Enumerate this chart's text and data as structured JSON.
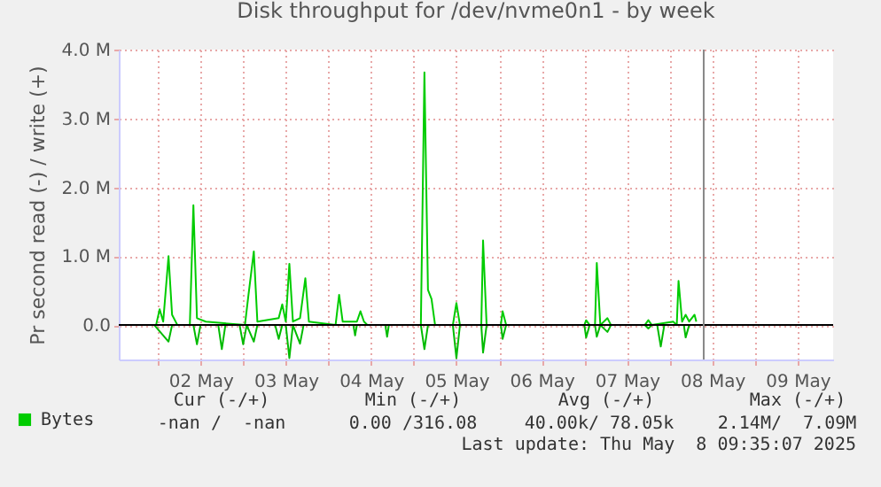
{
  "chart_data": {
    "type": "line",
    "title": "Disk throughput for /dev/nvme0n1 - by week",
    "ylabel": "Pr second read (-) / write (+)",
    "xlim": [
      "2025-05-01T13:00",
      "2025-05-09T22:00"
    ],
    "xticks": [
      {
        "value": "2025-05-02T00:00",
        "label": null
      },
      {
        "value": "2025-05-02T12:00",
        "label": "02 May"
      },
      {
        "value": "2025-05-03T00:00",
        "label": null
      },
      {
        "value": "2025-05-03T12:00",
        "label": "03 May"
      },
      {
        "value": "2025-05-04T00:00",
        "label": null
      },
      {
        "value": "2025-05-04T12:00",
        "label": "04 May"
      },
      {
        "value": "2025-05-05T00:00",
        "label": null
      },
      {
        "value": "2025-05-05T12:00",
        "label": "05 May"
      },
      {
        "value": "2025-05-06T00:00",
        "label": null
      },
      {
        "value": "2025-05-06T12:00",
        "label": "06 May"
      },
      {
        "value": "2025-05-07T00:00",
        "label": null
      },
      {
        "value": "2025-05-07T12:00",
        "label": "07 May"
      },
      {
        "value": "2025-05-08T00:00",
        "label": null
      },
      {
        "value": "2025-05-08T12:00",
        "label": "08 May"
      },
      {
        "value": "2025-05-09T00:00",
        "label": null
      },
      {
        "value": "2025-05-09T12:00",
        "label": "09 May"
      }
    ],
    "ylim": [
      -0.5,
      4.0
    ],
    "yticks": [
      {
        "value": 0,
        "label": "0.0"
      },
      {
        "value": 1,
        "label": "1.0 M"
      },
      {
        "value": 2,
        "label": "2.0 M"
      },
      {
        "value": 3,
        "label": "3.0 M"
      },
      {
        "value": 4,
        "label": "4.0 M"
      }
    ],
    "grid": true,
    "legend": "bottom left",
    "series": [
      {
        "name": "Bytes",
        "color": "#00cc00",
        "x": [
          "2025-05-01T13:00",
          "2025-05-01T23:30",
          "2025-05-02T00:30",
          "2025-05-02T01:30",
          "2025-05-02T03:00",
          "2025-05-02T04:00",
          "2025-05-02T05:30",
          "2025-05-02T09:00",
          "2025-05-02T10:00",
          "2025-05-02T11:00",
          "2025-05-02T13:30",
          "2025-05-03T00:30",
          "2025-05-03T01:30",
          "2025-05-03T03:00",
          "2025-05-03T04:00",
          "2025-05-03T10:00",
          "2025-05-03T11:00",
          "2025-05-03T12:00",
          "2025-05-03T13:00",
          "2025-05-03T14:00",
          "2025-05-03T16:00",
          "2025-05-03T17:30",
          "2025-05-03T18:30",
          "2025-05-04T02:00",
          "2025-05-04T03:00",
          "2025-05-04T04:00",
          "2025-05-04T08:00",
          "2025-05-04T09:00",
          "2025-05-04T10:00",
          "2025-05-04T11:00",
          "2025-05-05T02:00",
          "2025-05-05T03:00",
          "2025-05-05T04:00",
          "2025-05-05T05:00",
          "2025-05-05T06:00",
          "2025-05-05T11:00",
          "2025-05-05T12:00",
          "2025-05-05T13:00",
          "2025-05-05T19:00",
          "2025-05-05T19:30",
          "2025-05-05T20:30",
          "2025-05-06T00:30",
          "2025-05-06T01:00",
          "2025-05-06T02:00",
          "2025-05-06T06:00",
          "2025-05-07T00:00",
          "2025-05-07T00:30",
          "2025-05-07T01:30",
          "2025-05-07T03:00",
          "2025-05-07T03:30",
          "2025-05-07T04:30",
          "2025-05-07T06:30",
          "2025-05-07T07:30",
          "2025-05-07T09:00",
          "2025-05-07T17:00",
          "2025-05-07T18:00",
          "2025-05-07T19:00",
          "2025-05-08T01:00",
          "2025-05-08T02:00",
          "2025-05-08T02:30",
          "2025-05-08T03:30",
          "2025-05-08T04:30",
          "2025-05-08T05:30",
          "2025-05-08T07:00",
          "2025-05-08T07:30"
        ],
        "values": [
          0,
          0,
          0.23,
          0.05,
          1.0,
          0.15,
          0,
          0,
          1.74,
          0.1,
          0.05,
          0,
          0.44,
          1.07,
          0.05,
          0.1,
          0.3,
          0.05,
          0.89,
          0.05,
          0.1,
          0.68,
          0.05,
          0,
          0.44,
          0.05,
          0.05,
          0.2,
          0.05,
          0,
          0,
          3.67,
          0.51,
          0.38,
          0,
          0,
          0.32,
          0,
          0,
          1.23,
          0,
          0,
          0.2,
          0,
          null,
          0,
          0.07,
          0,
          0,
          0.9,
          0,
          0.1,
          0,
          null,
          0,
          0.07,
          0,
          0.05,
          0,
          0.64,
          0.05,
          0.15,
          0.05,
          0.15,
          0.05
        ]
      },
      {
        "color": "#00bb00",
        "x": [
          "2025-05-01T13:00",
          "2025-05-01T23:00",
          "2025-05-02T03:00",
          "2025-05-02T04:00",
          "2025-05-02T10:00",
          "2025-05-02T11:00",
          "2025-05-02T12:00",
          "2025-05-02T17:00",
          "2025-05-02T18:00",
          "2025-05-02T19:00",
          "2025-05-02T23:00",
          "2025-05-03T00:00",
          "2025-05-03T01:00",
          "2025-05-03T03:00",
          "2025-05-03T04:00",
          "2025-05-03T09:00",
          "2025-05-03T10:00",
          "2025-05-03T11:00",
          "2025-05-03T12:00",
          "2025-05-03T13:00",
          "2025-05-03T14:00",
          "2025-05-03T16:00",
          "2025-05-03T17:00",
          "2025-05-04T07:00",
          "2025-05-04T07:30",
          "2025-05-04T08:00",
          "2025-05-04T16:00",
          "2025-05-04T16:30",
          "2025-05-04T17:00",
          "2025-05-05T02:00",
          "2025-05-05T03:00",
          "2025-05-05T04:00",
          "2025-05-05T11:00",
          "2025-05-05T12:00",
          "2025-05-05T13:00",
          "2025-05-05T19:00",
          "2025-05-05T19:30",
          "2025-05-05T20:30",
          "2025-05-06T00:30",
          "2025-05-06T01:00",
          "2025-05-06T02:00",
          "2025-05-06T06:00",
          "2025-05-07T00:00",
          "2025-05-07T00:30",
          "2025-05-07T01:30",
          "2025-05-07T03:00",
          "2025-05-07T03:30",
          "2025-05-07T04:30",
          "2025-05-07T06:30",
          "2025-05-07T07:30",
          "2025-05-07T09:00",
          "2025-05-07T17:00",
          "2025-05-07T18:00",
          "2025-05-07T19:00",
          "2025-05-07T20:30",
          "2025-05-07T21:30",
          "2025-05-07T22:30",
          "2025-05-08T04:00",
          "2025-05-08T04:30",
          "2025-05-08T05:30",
          "2025-05-08T07:30"
        ],
        "values": [
          0,
          0,
          -0.24,
          0,
          0,
          -0.28,
          0,
          0,
          -0.35,
          0,
          0,
          -0.28,
          0,
          -0.24,
          0,
          0,
          -0.2,
          0,
          0,
          -0.48,
          0,
          -0.27,
          0,
          0,
          -0.15,
          0,
          0,
          -0.17,
          0,
          0,
          -0.35,
          0,
          0,
          -0.48,
          0,
          0,
          -0.4,
          0,
          0,
          -0.2,
          0,
          null,
          0,
          -0.18,
          0,
          0,
          -0.17,
          0,
          -0.1,
          0,
          null,
          0,
          -0.05,
          0,
          0,
          -0.31,
          0,
          0,
          -0.18,
          0,
          0
        ]
      }
    ],
    "ref_lines": [
      {
        "axis": "y",
        "value": 0,
        "label": null,
        "color": "#000000"
      },
      {
        "axis": "x",
        "value": "2025-05-08T09:35",
        "label": null,
        "color": "#888888"
      }
    ],
    "annotations": [
      "Cur (-/+)",
      "Min (-/+)",
      "Avg (-/+)",
      "Max (-/+)",
      "-nan /  -nan",
      "0.00 /316.08",
      "40.00k/ 78.05k",
      "2.14M/  7.09M",
      "Last update: Thu May  8 09:35:07 2025"
    ]
  }
}
